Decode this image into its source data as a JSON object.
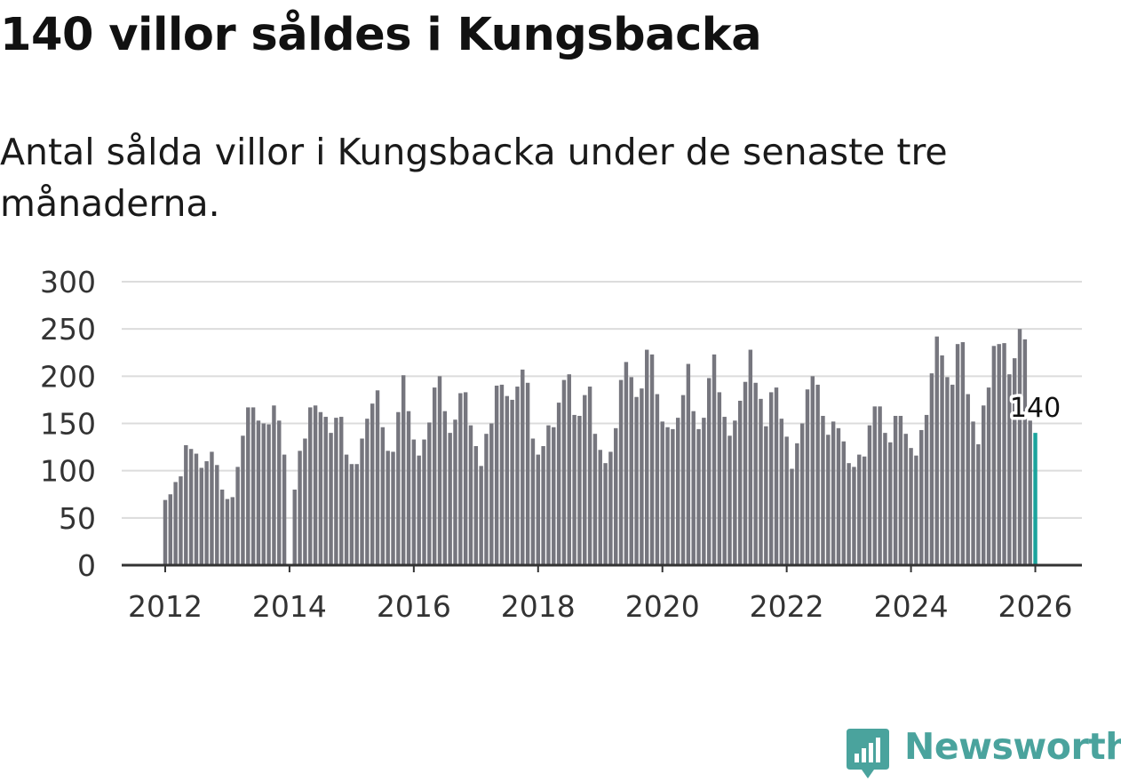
{
  "title": "140 villor såldes i Kungsbacka",
  "subtitle": "Antal sålda villor i Kungsbacka under de senaste tre månaderna.",
  "brand": {
    "name": "Newsworthy",
    "color": "#4aa39d"
  },
  "colors": {
    "bar": "#76767e",
    "highlight": "#1ba39c",
    "grid": "#dcdcdc",
    "axis": "#333333"
  },
  "chart_data": {
    "type": "bar",
    "title": "140 villor såldes i Kungsbacka",
    "xlabel": "",
    "ylabel": "",
    "ylim": [
      0,
      300
    ],
    "yticks": [
      0,
      50,
      100,
      150,
      200,
      250,
      300
    ],
    "xticks": [
      "2012",
      "2014",
      "2016",
      "2018",
      "2020",
      "2022",
      "2024",
      "2026"
    ],
    "xrange": [
      2011.3,
      2026.75
    ],
    "start": 2012.0,
    "step": 0.0833333,
    "highlight_label": "140",
    "values": [
      69,
      75,
      88,
      94,
      127,
      123,
      118,
      103,
      110,
      120,
      106,
      80,
      70,
      72,
      104,
      137,
      167,
      167,
      153,
      150,
      149,
      169,
      153,
      117,
      null,
      80,
      121,
      134,
      167,
      169,
      162,
      157,
      140,
      156,
      157,
      117,
      107,
      107,
      134,
      155,
      171,
      185,
      146,
      121,
      120,
      162,
      201,
      163,
      133,
      116,
      133,
      151,
      188,
      200,
      163,
      140,
      154,
      182,
      183,
      148,
      126,
      105,
      139,
      150,
      190,
      191,
      179,
      175,
      189,
      207,
      193,
      134,
      117,
      126,
      148,
      146,
      172,
      196,
      202,
      159,
      158,
      180,
      189,
      139,
      122,
      108,
      120,
      145,
      196,
      215,
      199,
      178,
      187,
      228,
      223,
      181,
      152,
      146,
      144,
      156,
      180,
      213,
      163,
      144,
      156,
      198,
      223,
      183,
      157,
      137,
      153,
      174,
      194,
      228,
      193,
      176,
      147,
      183,
      188,
      155,
      136,
      102,
      129,
      150,
      186,
      200,
      191,
      158,
      138,
      152,
      145,
      131,
      108,
      104,
      117,
      115,
      148,
      168,
      168,
      140,
      130,
      158,
      158,
      139,
      124,
      116,
      143,
      159,
      203,
      242,
      222,
      199,
      191,
      234,
      236,
      181,
      152,
      128,
      169,
      188,
      232,
      234,
      235,
      202,
      219,
      250,
      239,
      153,
      140
    ]
  }
}
